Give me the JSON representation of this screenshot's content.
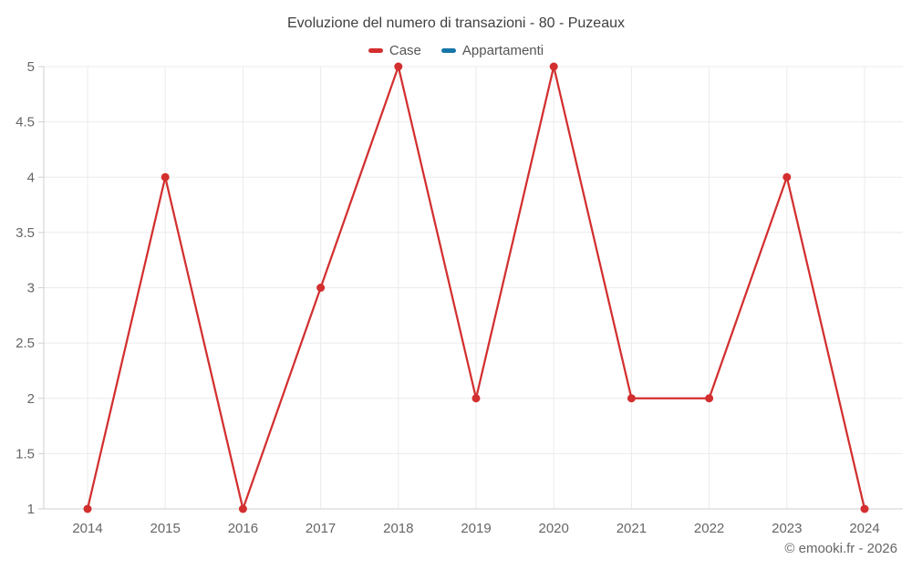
{
  "title": "Evoluzione del numero di transazioni - 80 - Puzeaux",
  "legend": {
    "items": [
      {
        "label": "Case",
        "color": "#d32f2f"
      },
      {
        "label": "Appartamenti",
        "color": "#1776a8"
      }
    ]
  },
  "footer": {
    "credit": "© emooki.fr - 2026"
  },
  "colors": {
    "case_red": "#d32f2f",
    "appartamenti_blue": "#1776a8",
    "grid": "#ebebeb",
    "axis": "#cfcfcf",
    "tick_label": "#666666"
  },
  "chart_data": {
    "type": "line",
    "title": "Evoluzione del numero di transazioni - 80 - Puzeaux",
    "x": [
      2014,
      2015,
      2016,
      2017,
      2018,
      2019,
      2020,
      2021,
      2022,
      2023,
      2024
    ],
    "series": [
      {
        "name": "Case",
        "color": "#d32f2f",
        "values": [
          1,
          4,
          1,
          3,
          5,
          2,
          5,
          2,
          2,
          4,
          1
        ]
      },
      {
        "name": "Appartamenti",
        "color": "#1776a8",
        "values": []
      }
    ],
    "xlabel": "",
    "ylabel": "",
    "ylim": [
      1,
      5
    ],
    "yticks": [
      1,
      1.5,
      2,
      2.5,
      3,
      3.5,
      4,
      4.5,
      5
    ],
    "grid": true,
    "legend_position": "top-center",
    "marker": "circle"
  }
}
